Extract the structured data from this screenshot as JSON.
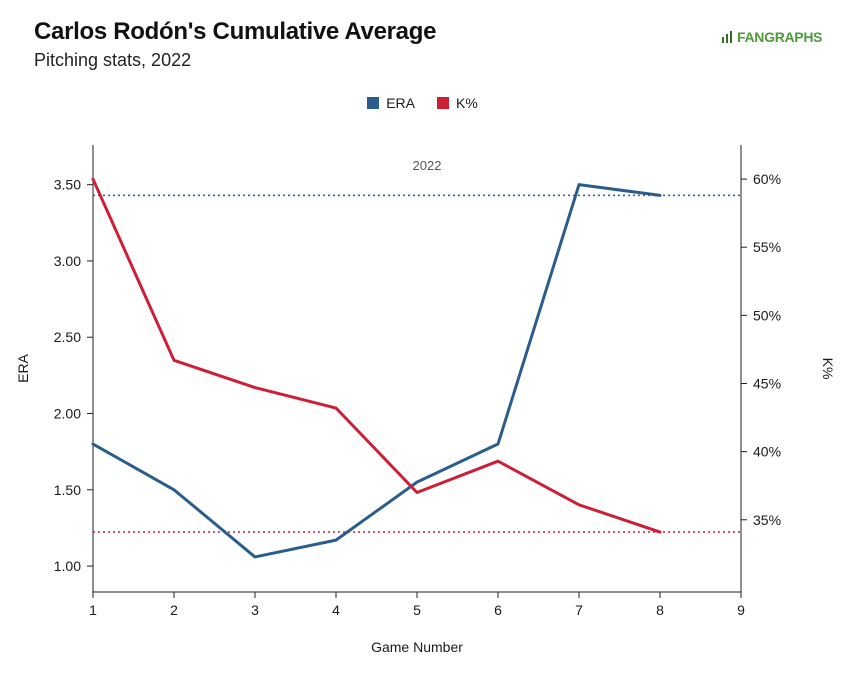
{
  "header": {
    "title": "Carlos Rodón's Cumulative Average",
    "subtitle": "Pitching stats, 2022",
    "brand": "FANGRAPHS"
  },
  "legend": [
    {
      "label": "ERA",
      "color": "#2b5d8c"
    },
    {
      "label": "K%",
      "color": "#cc1f36"
    }
  ],
  "chart_data": {
    "type": "line",
    "annotation": "2022",
    "xlabel": "Game Number",
    "ylabel_left": "ERA",
    "ylabel_right": "K%",
    "xlim": [
      1,
      9
    ],
    "x_ticks": [
      "1",
      "2",
      "3",
      "4",
      "5",
      "6",
      "7",
      "8",
      "9"
    ],
    "ylim_left": [
      0.83,
      3.76
    ],
    "ylim_right": [
      0.297,
      0.625
    ],
    "left_ticks": [
      {
        "value": 1.0,
        "label": "1.00"
      },
      {
        "value": 1.5,
        "label": "1.50"
      },
      {
        "value": 2.0,
        "label": "2.00"
      },
      {
        "value": 2.5,
        "label": "2.50"
      },
      {
        "value": 3.0,
        "label": "3.00"
      },
      {
        "value": 3.5,
        "label": "3.50"
      }
    ],
    "right_ticks": [
      {
        "value": 0.35,
        "label": "35%"
      },
      {
        "value": 0.4,
        "label": "40%"
      },
      {
        "value": 0.45,
        "label": "45%"
      },
      {
        "value": 0.5,
        "label": "50%"
      },
      {
        "value": 0.55,
        "label": "55%"
      },
      {
        "value": 0.6,
        "label": "60%"
      }
    ],
    "series": [
      {
        "name": "ERA",
        "axis": "left",
        "color": "#2b5d8c",
        "x": [
          1,
          2,
          3,
          4,
          5,
          6,
          7,
          8
        ],
        "values": [
          1.8,
          1.5,
          1.06,
          1.17,
          1.55,
          1.8,
          3.5,
          3.43
        ],
        "reference_line": 3.43
      },
      {
        "name": "K%",
        "axis": "right",
        "color": "#cc1f36",
        "x": [
          1,
          2,
          3,
          4,
          5,
          6,
          7,
          8
        ],
        "values": [
          0.6,
          0.467,
          0.447,
          0.432,
          0.37,
          0.393,
          0.361,
          0.341
        ],
        "reference_line": 0.341
      }
    ],
    "grid": false
  }
}
